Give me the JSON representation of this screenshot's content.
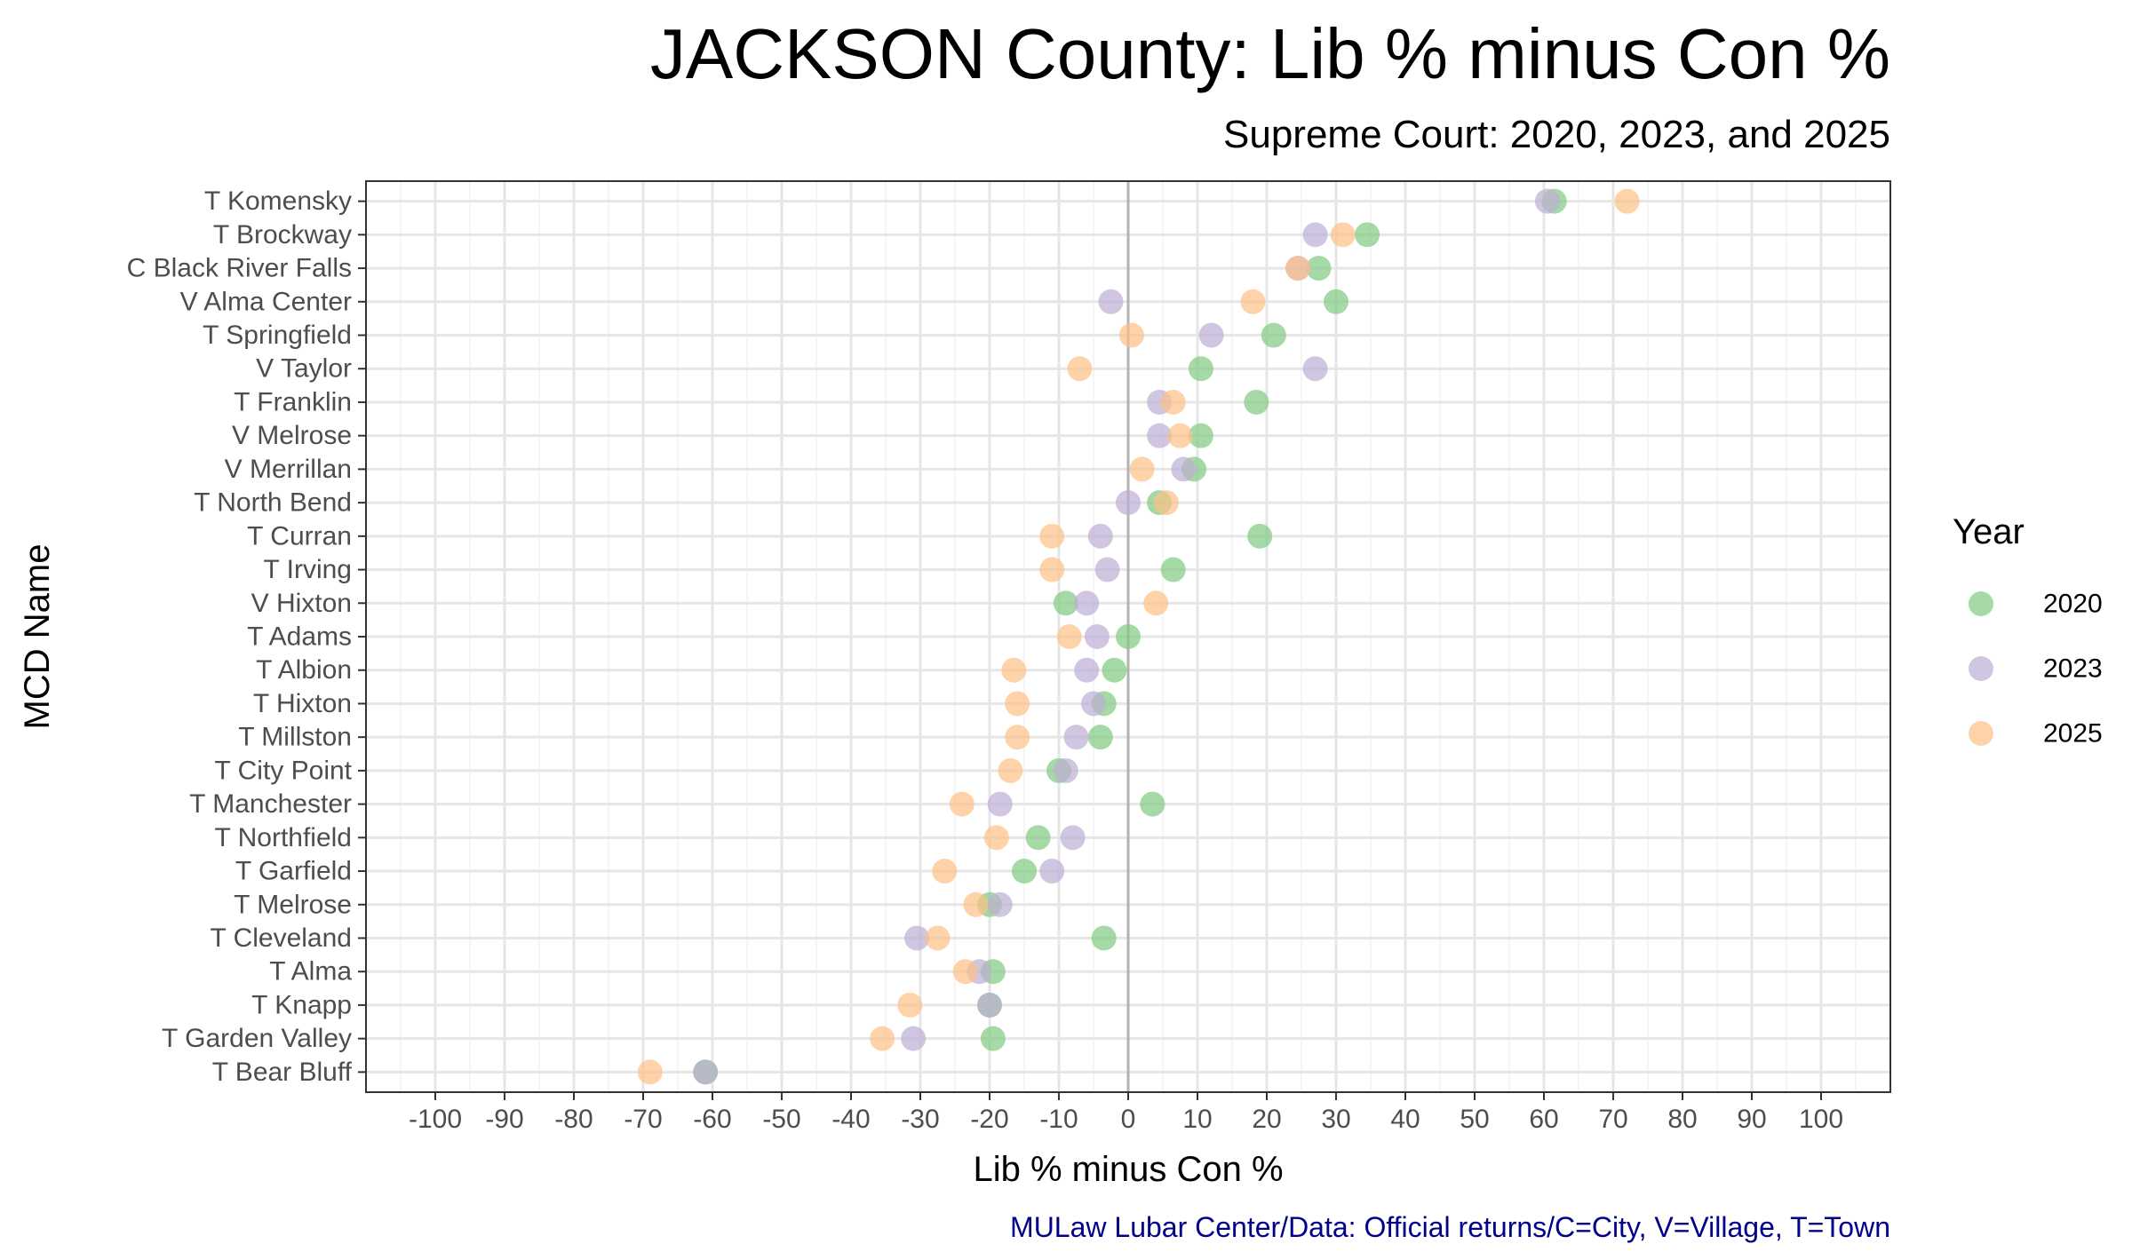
{
  "chart_data": {
    "type": "scatter",
    "title": "JACKSON County: Lib % minus Con %",
    "subtitle": "Supreme Court: 2020, 2023, and 2025",
    "xlabel": "Lib % minus Con %",
    "ylabel": "MCD Name",
    "caption": "MULaw Lubar Center/Data: Official returns/C=City, V=Village, T=Town",
    "xlim": [
      -110,
      110
    ],
    "xticks": [
      -100,
      -90,
      -80,
      -70,
      -60,
      -50,
      -40,
      -30,
      -20,
      -10,
      0,
      10,
      20,
      30,
      40,
      50,
      60,
      70,
      80,
      90,
      100
    ],
    "grid": true,
    "legend": {
      "title": "Year",
      "position": "right"
    },
    "categories": [
      "T Komensky",
      "T Brockway",
      "C Black River Falls",
      "V Alma Center",
      "T Springfield",
      "V Taylor",
      "T Franklin",
      "V Melrose",
      "V Merrillan",
      "T North Bend",
      "T Curran",
      "T Irving",
      "V Hixton",
      "T Adams",
      "T Albion",
      "T Hixton",
      "T Millston",
      "T City Point",
      "T Manchester",
      "T Northfield",
      "T Garfield",
      "T Melrose",
      "T Cleveland",
      "T Alma",
      "T Knapp",
      "T Garden Valley",
      "T Bear Bluff"
    ],
    "series": [
      {
        "name": "2020",
        "color": "#7fc97f",
        "values": [
          61.5,
          34.5,
          27.5,
          30,
          21,
          10.5,
          18.5,
          10.5,
          9.5,
          4.5,
          19,
          6.5,
          -9,
          0,
          -2,
          -3.5,
          -4,
          -10,
          3.5,
          -13,
          -15,
          -20,
          -3.5,
          -19.5,
          -20,
          -19.5,
          -61
        ]
      },
      {
        "name": "2023",
        "color": "#beaed4",
        "values": [
          60.5,
          27,
          24.5,
          -2.5,
          12,
          27,
          4.5,
          4.5,
          8,
          0,
          -4,
          -3,
          -6,
          -4.5,
          -6,
          -5,
          -7.5,
          -9,
          -18.5,
          -8,
          -11,
          -18.5,
          -30.5,
          -21.5,
          -20,
          -31,
          -61
        ]
      },
      {
        "name": "2025",
        "color": "#fdc086",
        "values": [
          72,
          31,
          24.5,
          18,
          0.5,
          -7,
          6.5,
          7.5,
          2,
          5.5,
          -11,
          -11,
          4,
          -8.5,
          -16.5,
          -16,
          -16,
          -17,
          -24,
          -19,
          -26.5,
          -22,
          -27.5,
          -23.5,
          -31.5,
          -35.5,
          -69
        ]
      }
    ]
  }
}
